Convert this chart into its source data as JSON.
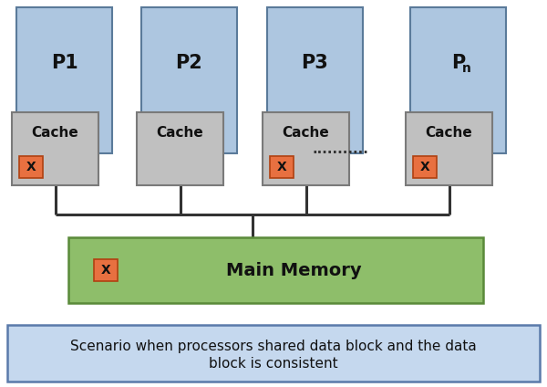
{
  "bg_color": "#ffffff",
  "processor_color": "#adc6e0",
  "cache_color": "#c0c0c0",
  "x_box_color": "#e87040",
  "memory_color": "#8ebe6a",
  "bottom_box_color": "#c5d8ee",
  "proc_border": "#5a7a9a",
  "cache_border": "#7a7a7a",
  "mem_border": "#5a8a3a",
  "bot_border": "#5a7aaa",
  "line_color": "#333333",
  "line_width": 2.2,
  "processors": [
    {
      "label": "P1",
      "has_x": true
    },
    {
      "label": "P2",
      "has_x": false
    },
    {
      "label": "P3",
      "has_x": true
    },
    {
      "label": "P",
      "has_x": true,
      "sub": "n"
    }
  ],
  "cache_label": "Cache",
  "dots_text": "...........",
  "main_memory_label": "Main Memory",
  "caption_line1": "Scenario when processors shared data block and the data",
  "caption_line2": "block is consistent"
}
